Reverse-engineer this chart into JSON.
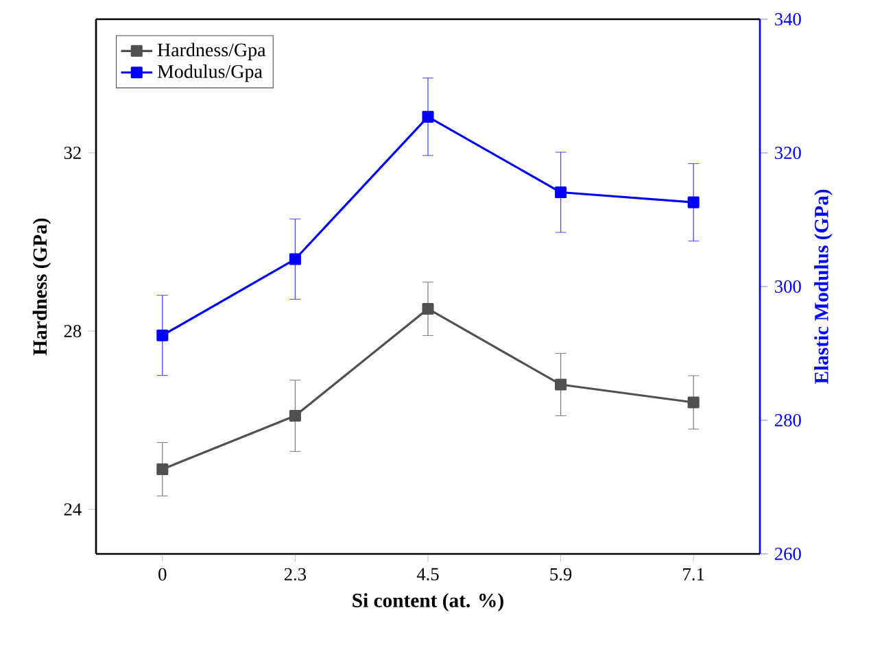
{
  "chart_data": {
    "type": "line",
    "xlabel": "Si content (at. %)",
    "ylabel": "Hardness (GPa)",
    "y2label": "Elastic Modulus (GPa)",
    "categories": [
      "0",
      "2.3",
      "4.5",
      "5.9",
      "7.1"
    ],
    "ylim": [
      23,
      35
    ],
    "yticks": [
      24,
      28,
      32
    ],
    "y2lim": [
      260,
      340
    ],
    "y2ticks": [
      260,
      280,
      300,
      320,
      340
    ],
    "legend": "top left",
    "marker": "square",
    "line_style": "solid",
    "series": [
      {
        "name": "Hardness/Gpa",
        "color": "#505050",
        "values": [
          24.9,
          26.1,
          28.5,
          26.8,
          26.4
        ],
        "errors": [
          0.6,
          0.8,
          0.6,
          0.7,
          0.6
        ]
      },
      {
        "name": "Modulus/Gpa",
        "color": "#0000ff",
        "axis": "y2",
        "values": [
          292.7,
          304.1,
          325.4,
          314.1,
          312.6
        ],
        "errors": [
          6,
          6,
          5.8,
          6,
          5.8
        ]
      }
    ]
  }
}
